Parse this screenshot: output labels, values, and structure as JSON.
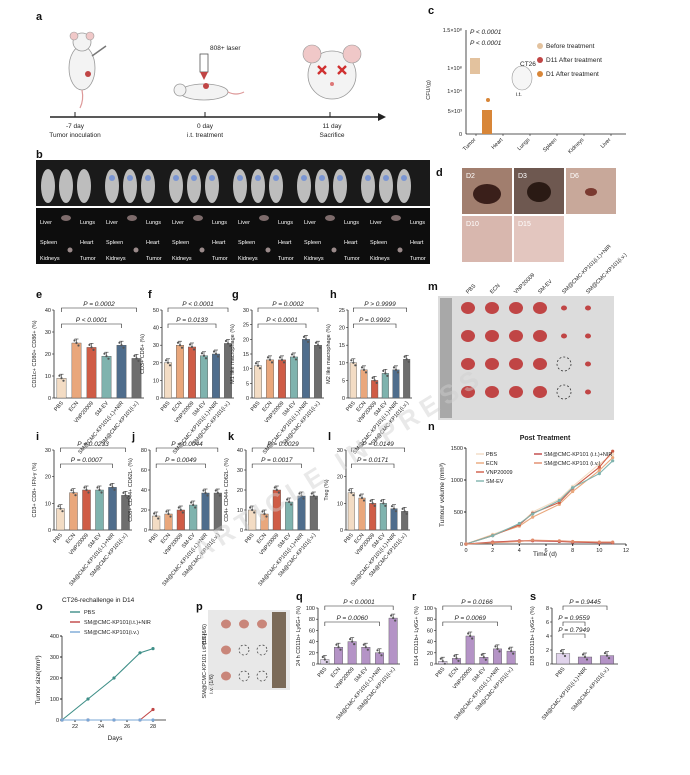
{
  "panel_labels": [
    "a",
    "b",
    "c",
    "d",
    "e",
    "f",
    "g",
    "h",
    "i",
    "j",
    "k",
    "l",
    "m",
    "n",
    "o",
    "p",
    "q",
    "r",
    "s"
  ],
  "panel_a": {
    "laser": "808+ laser",
    "timeline": [
      {
        "day": "-7 day",
        "event": "Tumor inoculation"
      },
      {
        "day": "0 day",
        "event": "i.t. treatment"
      },
      {
        "day": "11 day",
        "event": "Sacrifice"
      }
    ]
  },
  "panel_b": {
    "organs": [
      "Liver",
      "Lungs",
      "Spleen",
      "Heart",
      "Kidneys",
      "Tumor"
    ]
  },
  "panel_c": {
    "p1": "P < 0.0001",
    "p2": "P < 0.0001",
    "ylabel": "CFU/(g)",
    "yticks_top": [
      "1.5×10⁸",
      "1×10⁸"
    ],
    "yticks_bottom": [
      "1×10⁴",
      "5×10³",
      "0"
    ],
    "inset_label": "CT26",
    "inset_route": "i.t.",
    "legend": [
      "Before treatment",
      "D11 After treatment",
      "D1 After treatment"
    ],
    "categories": [
      "Tumor",
      "Heart",
      "Lungs",
      "Spleen",
      "Kidneys",
      "Liver"
    ]
  },
  "panel_d": {
    "days": [
      "D2",
      "D3",
      "D6",
      "D10",
      "D15"
    ]
  },
  "groups_short": [
    "PBS",
    "ECN",
    "VNP20009",
    "SM-EV",
    "SM@CMC-KP101(i.t.)+NIR",
    "SM@CMC-KP101(i.v.)"
  ],
  "panel_e": {
    "ylabel": "CD11c+ CD80+ CD86+ (%)",
    "p1": "P = 0.0002",
    "p2": "P < 0.0001"
  },
  "panel_f": {
    "ylabel": "CD3+ CD8+ (%)",
    "p1": "P < 0.0001",
    "p2": "P = 0.0133"
  },
  "panel_g": {
    "ylabel": "M1 like macrophage (%)",
    "p1": "P = 0.0002",
    "p2": "P < 0.0001"
  },
  "panel_h": {
    "ylabel": "M2 like macrophage (%)",
    "p1": "P > 0.9999",
    "p2": "P = 0.9992"
  },
  "panel_i": {
    "ylabel": "CD3+ CD8+ IFN-γ (%)",
    "p1": "P = 0.0233",
    "p2": "P = 0.0007"
  },
  "panel_j": {
    "ylabel": "CD8+ CD44+ CD62L- (%)",
    "p1": "P = 0.0044",
    "p2": "P = 0.0049"
  },
  "panel_k": {
    "ylabel": "CD4+ CD44+ CD62L- (%)",
    "p1": "P = 0.0029",
    "p2": "P = 0.0017"
  },
  "panel_l": {
    "ylabel": "Treg (%)",
    "p1": "P = 0.0149",
    "p2": "P = 0.0171"
  },
  "panel_m": {
    "headers": [
      "PBS",
      "ECN",
      "VNP20009",
      "SM-EV",
      "SM@CMC-KP101(i.t.)+NIR",
      "SM@CMC-KP101(i.v.)"
    ]
  },
  "panel_n": {
    "title": "Post Treatment",
    "ylabel": "Tumour volume (mm³)",
    "xlabel": "Time  (d)",
    "legend": [
      "PBS",
      "ECN",
      "VNP20009",
      "SM-EV",
      "SM@CMC-KP101 (i.t.)+NIR",
      "SM@CMC-KP101 (i.v.)"
    ],
    "yticks": [
      "0",
      "500",
      "1000",
      "1500"
    ],
    "xticks": [
      "0",
      "2",
      "4",
      "6",
      "8",
      "10",
      "12"
    ]
  },
  "panel_o": {
    "title": "CT26-rechallenge in D14",
    "ylabel": "Tumor size(mm³)",
    "xlabel": "Days",
    "legend": [
      "PBS",
      "SM@CMC-KP101(i.t.)+NIR",
      "SM@CMC-KP101(i.v.)"
    ],
    "yticks": [
      "0",
      "100",
      "200",
      "300",
      "400"
    ],
    "xticks": [
      "22",
      "24",
      "26",
      "28"
    ]
  },
  "panel_p": {
    "rows": [
      "PBS (6/6)",
      "SM@CMC-KP101 i.t. (1/6)",
      "i.v. (1/6)"
    ]
  },
  "panel_q": {
    "ylabel": "24 h CD11b+ Ly6G+ (%)",
    "p1": "P < 0.0001",
    "p2": "P = 0.0060"
  },
  "panel_r": {
    "ylabel": "D14 CD11b+ Ly6G+ (%)",
    "p1": "P = 0.0166",
    "p2": "P = 0.0069"
  },
  "panel_s": {
    "ylabel": "D28 CD11b+ Ly6G+ (%)",
    "p1": "P = 0.9445",
    "p2": "P = 0.9559",
    "p3": "P = 0.7949",
    "categories": [
      "PBS",
      "SM@CMC-KP101(i.t.)+NIR",
      "SM@CMC-KP101(i.v.)"
    ]
  },
  "watermark": "ARTICLE IN PRESS",
  "colors": {
    "pbs": "#f3dcc4",
    "ecn": "#e9a77c",
    "vnp": "#cf5c46",
    "smev": "#7fb3ae",
    "it": "#4f6d8c",
    "iv": "#6e6e6e",
    "purple": "#9b6fb3",
    "tumor": "#c04545"
  },
  "chart_data": [
    {
      "type": "bar",
      "panel": "e",
      "categories": [
        "PBS",
        "ECN",
        "VNP20009",
        "SM-EV",
        "SM@CMC-KP101(i.t.)+NIR",
        "SM@CMC-KP101(i.v.)"
      ],
      "values": [
        9,
        25,
        23,
        19,
        24,
        18
      ],
      "ylim": [
        0,
        40
      ],
      "yticks": [
        "0",
        "10",
        "20",
        "30",
        "40"
      ]
    },
    {
      "type": "bar",
      "panel": "f",
      "categories": [
        "PBS",
        "ECN",
        "VNP20009",
        "SM-EV",
        "SM@CMC-KP101(i.t.)+NIR",
        "SM@CMC-KP101(i.v.)"
      ],
      "values": [
        20,
        30,
        29,
        24,
        25,
        31
      ],
      "ylim": [
        0,
        50
      ],
      "yticks": [
        "0",
        "10",
        "20",
        "30",
        "40",
        "50"
      ]
    },
    {
      "type": "bar",
      "panel": "g",
      "categories": [
        "PBS",
        "ECN",
        "VNP20009",
        "SM-EV",
        "SM@CMC-KP101(i.t.)+NIR",
        "SM@CMC-KP101(i.v.)"
      ],
      "values": [
        11,
        13,
        13,
        14,
        20,
        18
      ],
      "ylim": [
        0,
        30
      ],
      "yticks": [
        "0",
        "5",
        "10",
        "15",
        "20",
        "25",
        "30"
      ]
    },
    {
      "type": "bar",
      "panel": "h",
      "categories": [
        "PBS",
        "ECN",
        "VNP20009",
        "SM-EV",
        "SM@CMC-KP101(i.t.)+NIR",
        "SM@CMC-KP101(i.v.)"
      ],
      "values": [
        10,
        8,
        5,
        7,
        8,
        11
      ],
      "ylim": [
        0,
        25
      ],
      "yticks": [
        "0",
        "5",
        "10",
        "15",
        "20",
        "25"
      ]
    },
    {
      "type": "bar",
      "panel": "i",
      "categories": [
        "PBS",
        "ECN",
        "VNP20009",
        "SM-EV",
        "SM@CMC-KP101(i.t.)+NIR",
        "SM@CMC-KP101(i.v.)"
      ],
      "values": [
        8,
        14,
        15,
        15,
        16,
        13
      ],
      "ylim": [
        0,
        30
      ],
      "yticks": [
        "0",
        "10",
        "20",
        "30"
      ]
    },
    {
      "type": "bar",
      "panel": "j",
      "categories": [
        "PBS",
        "ECN",
        "VNP20009",
        "SM-EV",
        "SM@CMC-KP101(i.t.)+NIR",
        "SM@CMC-KP101(i.v.)"
      ],
      "values": [
        14,
        16,
        20,
        25,
        37,
        37
      ],
      "ylim": [
        0,
        80
      ],
      "yticks": [
        "0",
        "20",
        "40",
        "60",
        "80"
      ]
    },
    {
      "type": "bar",
      "panel": "k",
      "categories": [
        "PBS",
        "ECN",
        "VNP20009",
        "SM-EV",
        "SM@CMC-KP101(i.t.)+NIR",
        "SM@CMC-KP101(i.v.)"
      ],
      "values": [
        10,
        8,
        20,
        14,
        17,
        17
      ],
      "ylim": [
        0,
        40
      ],
      "yticks": [
        "0",
        "10",
        "20",
        "30",
        "40"
      ]
    },
    {
      "type": "bar",
      "panel": "l",
      "categories": [
        "PBS",
        "ECN",
        "VNP20009",
        "SM-EV",
        "SM@CMC-KP101(i.t.)+NIR",
        "SM@CMC-KP101(i.v.)"
      ],
      "values": [
        14,
        12,
        10,
        10,
        8,
        7
      ],
      "ylim": [
        0,
        30
      ],
      "yticks": [
        "0",
        "10",
        "20",
        "30"
      ]
    },
    {
      "type": "line",
      "panel": "n",
      "x": [
        0,
        2,
        4,
        5,
        7,
        8,
        10,
        11
      ],
      "series": [
        {
          "name": "PBS",
          "values": [
            0,
            150,
            300,
            500,
            700,
            900,
            1250,
            1400
          ]
        },
        {
          "name": "ECN",
          "values": [
            0,
            140,
            280,
            420,
            620,
            820,
            1150,
            1350
          ]
        },
        {
          "name": "VNP20009",
          "values": [
            0,
            130,
            300,
            480,
            650,
            870,
            1200,
            1450
          ]
        },
        {
          "name": "SM-EV",
          "values": [
            0,
            130,
            320,
            470,
            680,
            880,
            1100,
            1300
          ]
        },
        {
          "name": "SM@CMC-KP101 (i.t.)+NIR",
          "values": [
            0,
            30,
            50,
            50,
            40,
            30,
            20,
            20
          ]
        },
        {
          "name": "SM@CMC-KP101 (i.v.)",
          "values": [
            0,
            20,
            40,
            60,
            50,
            40,
            30,
            30
          ]
        }
      ],
      "ylim": [
        0,
        1500
      ],
      "xlim": [
        0,
        12
      ]
    },
    {
      "type": "line",
      "panel": "o",
      "x": [
        21,
        23,
        25,
        27,
        28
      ],
      "series": [
        {
          "name": "PBS",
          "values": [
            0,
            100,
            200,
            320,
            340
          ]
        },
        {
          "name": "SM@CMC-KP101(i.t.)+NIR",
          "values": [
            0,
            0,
            0,
            0,
            50
          ]
        },
        {
          "name": "SM@CMC-KP101(i.v.)",
          "values": [
            0,
            0,
            0,
            0,
            0
          ]
        }
      ],
      "ylim": [
        0,
        400
      ]
    },
    {
      "type": "bar",
      "panel": "q",
      "categories": [
        "PBS",
        "ECN",
        "VNP20009",
        "SM-EV",
        "SM@CMC-KP101(i.t.)+NIR",
        "SM@CMC-KP101(i.v.)"
      ],
      "values": [
        8,
        30,
        40,
        30,
        20,
        82
      ],
      "ylim": [
        0,
        100
      ],
      "yticks": [
        "0",
        "20",
        "40",
        "60",
        "80",
        "100"
      ]
    },
    {
      "type": "bar",
      "panel": "r",
      "categories": [
        "PBS",
        "ECN",
        "VNP20009",
        "SM-EV",
        "SM@CMC-KP101(i.t.)+NIR",
        "SM@CMC-KP101(i.v.)"
      ],
      "values": [
        5,
        10,
        50,
        12,
        27,
        23
      ],
      "ylim": [
        0,
        100
      ],
      "yticks": [
        "0",
        "20",
        "40",
        "60",
        "80",
        "100"
      ]
    },
    {
      "type": "bar",
      "panel": "s",
      "categories": [
        "PBS",
        "SM@CMC-KP101(i.t.)+NIR",
        "SM@CMC-KP101(i.v.)"
      ],
      "values": [
        1.5,
        1.0,
        1.2
      ],
      "ylim": [
        0,
        8
      ],
      "yticks": [
        "0",
        "2",
        "4",
        "6",
        "8"
      ]
    }
  ]
}
